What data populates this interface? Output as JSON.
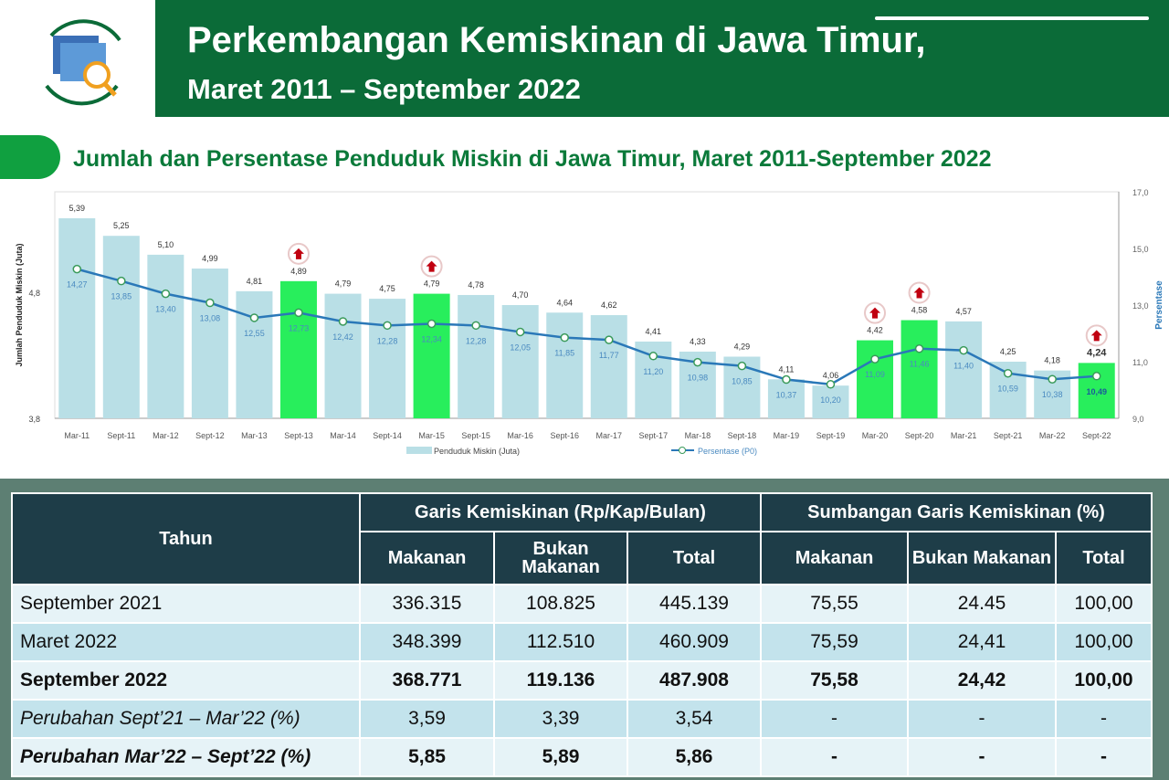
{
  "header": {
    "title": "Perkembangan Kemiskinan di Jawa Timur,",
    "subtitle": "Maret 2011 – September 2022"
  },
  "section_title": "Jumlah dan Persentase Penduduk Miskin di Jawa Timur, Maret 2011-September 2022",
  "colors": {
    "header_green": "#0b6b38",
    "bar": "#b9dfe6",
    "bar_highlight": "#28ee5c",
    "line": "#2a78b8",
    "table_header": "#1e3d48"
  },
  "chart_data": {
    "type": "bar+line",
    "title": "Jumlah dan Persentase Penduduk Miskin di Jawa Timur, Maret 2011-September 2022",
    "categories": [
      "Mar-11",
      "Sept-11",
      "Mar-12",
      "Sept-12",
      "Mar-13",
      "Sept-13",
      "Mar-14",
      "Sept-14",
      "Mar-15",
      "Sept-15",
      "Mar-16",
      "Sept-16",
      "Mar-17",
      "Sept-17",
      "Mar-18",
      "Sept-18",
      "Mar-19",
      "Sept-19",
      "Mar-20",
      "Sept-20",
      "Mar-21",
      "Sept-21",
      "Mar-22",
      "Sept-22"
    ],
    "series": [
      {
        "name": "Penduduk Miskin (Juta)",
        "type": "bar",
        "axis": "left",
        "values": [
          5.39,
          5.25,
          5.1,
          4.99,
          4.81,
          4.89,
          4.79,
          4.75,
          4.79,
          4.78,
          4.7,
          4.64,
          4.62,
          4.41,
          4.33,
          4.29,
          4.11,
          4.06,
          4.42,
          4.58,
          4.57,
          4.25,
          4.18,
          4.24
        ],
        "labels": [
          "5,39",
          "5,25",
          "5,10",
          "4,99",
          "4,81",
          "4,89",
          "4,79",
          "4,75",
          "4,79",
          "4,78",
          "4,70",
          "4,64",
          "4,62",
          "4,41",
          "4,33",
          "4,29",
          "4,11",
          "4,06",
          "4,42",
          "4,58",
          "4,57",
          "4,25",
          "4,18",
          "4,24"
        ]
      },
      {
        "name": "Persentase (P0)",
        "type": "line",
        "axis": "right",
        "values": [
          14.27,
          13.85,
          13.4,
          13.08,
          12.55,
          12.73,
          12.42,
          12.28,
          12.34,
          12.28,
          12.05,
          11.85,
          11.77,
          11.2,
          10.98,
          10.85,
          10.37,
          10.2,
          11.09,
          11.46,
          11.4,
          10.59,
          10.38,
          10.49
        ],
        "labels": [
          "14,27",
          "13,85",
          "13,40",
          "13,08",
          "12,55",
          "12,73",
          "12,42",
          "12,28",
          "12,34",
          "12,28",
          "12,05",
          "11,85",
          "11,77",
          "11,20",
          "10,98",
          "10,85",
          "10,37",
          "10,20",
          "11,09",
          "11,46",
          "11,40",
          "10,59",
          "10,38",
          "10,49"
        ]
      }
    ],
    "highlighted_increase": [
      "Sept-13",
      "Mar-15",
      "Mar-20",
      "Sept-20",
      "Sept-22"
    ],
    "ylabel": "Jumlah Penduduk Miskin (Juta)",
    "y2label": "Persentase",
    "ylim": [
      3.8,
      5.6
    ],
    "yticks": [
      "3,8",
      "4,8"
    ],
    "y2lim": [
      9.0,
      17.0
    ],
    "y2ticks": [
      "9,0",
      "11,0",
      "13,0",
      "15,0",
      "17,0"
    ],
    "legend": [
      "Penduduk Miskin (Juta)",
      "Persentase (P0)"
    ],
    "legend_position": "bottom"
  },
  "table": {
    "head": {
      "tahun": "Tahun",
      "group1": "Garis Kemiskinan (Rp/Kap/Bulan)",
      "group2": "Sumbangan Garis Kemiskinan (%)",
      "cols": [
        "Makanan",
        "Bukan Makanan",
        "Total",
        "Makanan",
        "Bukan Makanan",
        "Total"
      ]
    },
    "rows": [
      [
        "September 2021",
        "336.315",
        "108.825",
        "445.139",
        "75,55",
        "24.45",
        "100,00"
      ],
      [
        "Maret 2022",
        "348.399",
        "112.510",
        "460.909",
        "75,59",
        "24,41",
        "100,00"
      ],
      [
        "September 2022",
        "368.771",
        "119.136",
        "487.908",
        "75,58",
        "24,42",
        "100,00"
      ],
      [
        "Perubahan Sept’21 – Mar’22 (%)",
        "3,59",
        "3,39",
        "3,54",
        "-",
        "-",
        "-"
      ],
      [
        "Perubahan Mar’22 – Sept’22 (%)",
        "5,85",
        "5,89",
        "5,86",
        "-",
        "-",
        "-"
      ]
    ]
  }
}
